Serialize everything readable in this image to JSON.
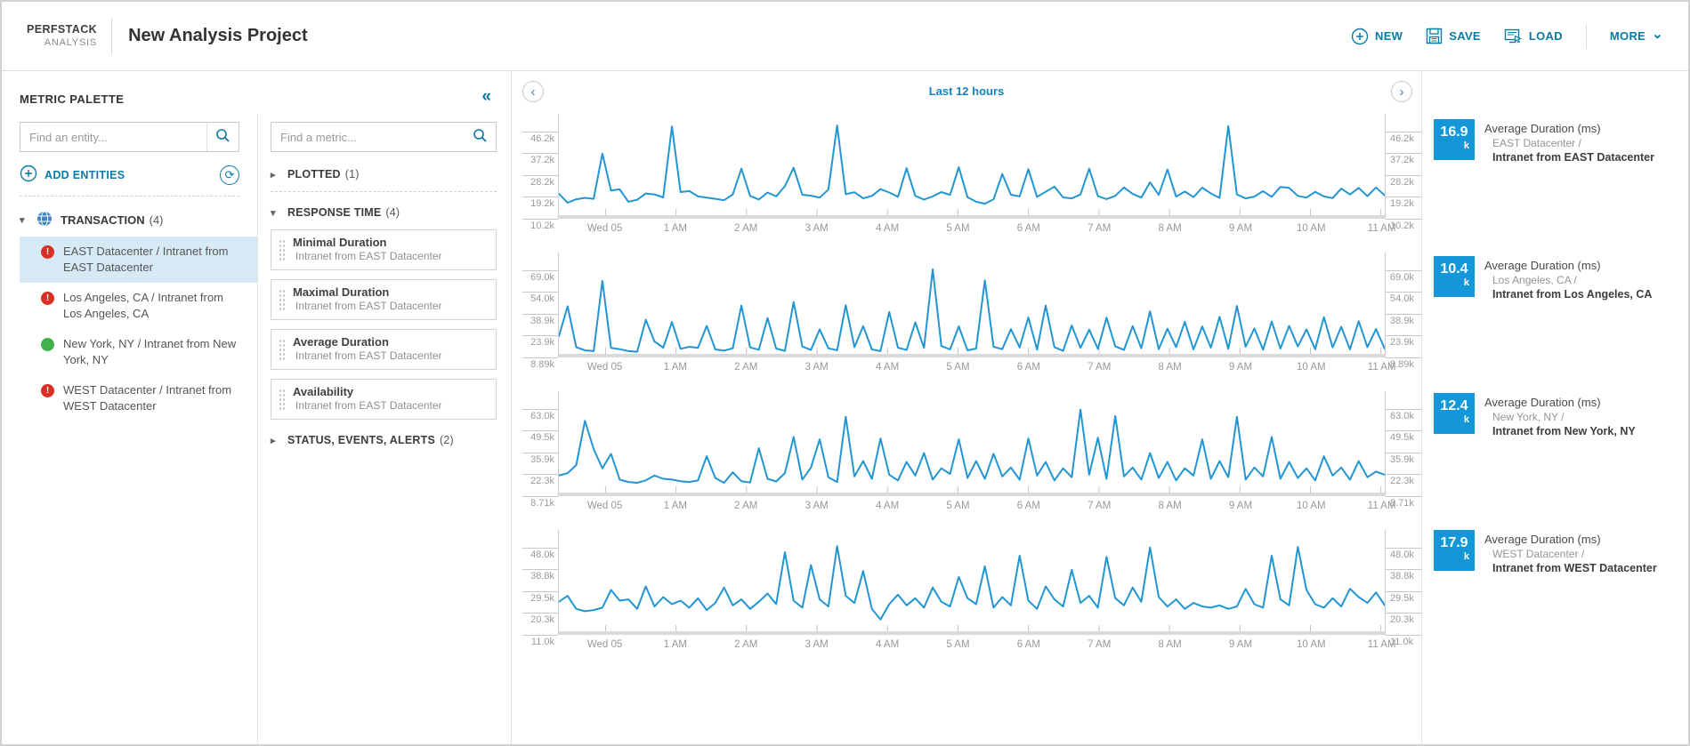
{
  "header": {
    "brand_line1": "PERFSTACK",
    "brand_line2": "ANALYSIS",
    "title": "New Analysis Project",
    "actions": {
      "new_label": "NEW",
      "save_label": "SAVE",
      "load_label": "LOAD",
      "more_label": "MORE"
    }
  },
  "icons": {
    "collapse": "«",
    "back": "‹",
    "forward": "›",
    "more_chevron": "⌄",
    "refresh": "⟳",
    "caret_right": "▸",
    "caret_down": "▾"
  },
  "colors": {
    "accent": "#0b7aa6",
    "line": "#2196d3",
    "legend_box": "#1497d8",
    "critical": "#d93025",
    "ok": "#43b14b",
    "selected_bg": "#d6eaf6",
    "time_label": "#1583c2"
  },
  "palette": {
    "title": "METRIC PALETTE",
    "entity_search_placeholder": "Find an entity...",
    "metric_search_placeholder": "Find a metric...",
    "add_entities_label": "ADD ENTITIES",
    "tree": {
      "group_label": "TRANSACTION",
      "group_count": "(4)",
      "items": [
        {
          "status": "critical",
          "label": "EAST Datacenter / Intranet from EAST Datacenter",
          "selected": true
        },
        {
          "status": "critical",
          "label": "Los Angeles, CA / Intranet from Los Angeles, CA",
          "selected": false
        },
        {
          "status": "up",
          "label": "New York, NY / Intranet from New York, NY",
          "selected": false
        },
        {
          "status": "critical",
          "label": "WEST Datacenter / Intranet from WEST Datacenter",
          "selected": false
        }
      ]
    },
    "sections": {
      "plotted_label": "PLOTTED",
      "plotted_count": "(1)",
      "response_label": "RESPONSE TIME",
      "response_count": "(4)",
      "status_label": "STATUS, EVENTS, ALERTS",
      "status_count": "(2)"
    },
    "metrics": [
      {
        "title": "Minimal Duration",
        "subtitle": "Intranet from EAST Datacenter"
      },
      {
        "title": "Maximal Duration",
        "subtitle": "Intranet from EAST Datacenter"
      },
      {
        "title": "Average Duration",
        "subtitle": "Intranet from EAST Datacenter"
      },
      {
        "title": "Availability",
        "subtitle": "Intranet from EAST Datacenter"
      }
    ]
  },
  "timebar": {
    "label": "Last 12 hours"
  },
  "chart_data": {
    "type": "line",
    "time_range": "Last 12 hours",
    "line_color": "#2196d3",
    "x_ticks": [
      "Wed 05",
      "1 AM",
      "2 AM",
      "3 AM",
      "4 AM",
      "5 AM",
      "6 AM",
      "7 AM",
      "8 AM",
      "9 AM",
      "10 AM",
      "11 AM"
    ],
    "unit": "ms (thousands)",
    "charts": [
      {
        "legend": {
          "value": "16.9",
          "unit": "k",
          "metric": "Average Duration (ms)",
          "entity": "EAST Datacenter /",
          "transaction": "Intranet from EAST Datacenter"
        },
        "ymin": 10.2,
        "ymax": 53.4,
        "y_ticks": [
          {
            "v": 10.2,
            "label": "10.2k"
          },
          {
            "v": 19.2,
            "label": "19.2k"
          },
          {
            "v": 28.2,
            "label": "28.2k"
          },
          {
            "v": 37.2,
            "label": "37.2k"
          },
          {
            "v": 46.2,
            "label": "46.2k"
          }
        ],
        "values": [
          20.5,
          16.8,
          18.2,
          18.8,
          18.4,
          37.0,
          21.8,
          22.3,
          17.2,
          18.0,
          20.6,
          20.2,
          19.0,
          48.2,
          21.2,
          21.6,
          19.4,
          18.9,
          18.4,
          17.8,
          20.2,
          30.8,
          19.6,
          18.1,
          21.0,
          19.4,
          23.6,
          31.2,
          20.1,
          19.7,
          18.9,
          22.2,
          48.6,
          20.3,
          21.1,
          18.6,
          19.6,
          22.4,
          21.0,
          19.2,
          31.0,
          19.6,
          18.1,
          19.4,
          21.2,
          20.0,
          31.4,
          19.1,
          17.2,
          16.4,
          18.2,
          28.6,
          20.1,
          19.4,
          30.6,
          19.2,
          21.3,
          23.4,
          19.0,
          18.6,
          20.2,
          30.8,
          19.5,
          18.3,
          19.6,
          23.1,
          20.4,
          18.9,
          25.2,
          20.0,
          30.5,
          19.3,
          21.4,
          19.1,
          23.0,
          20.6,
          18.8,
          48.4,
          20.2,
          18.6,
          19.3,
          21.6,
          19.2,
          23.3,
          22.9,
          19.6,
          18.9,
          21.3,
          19.4,
          18.7,
          22.6,
          20.2,
          22.9,
          19.5,
          23.1,
          19.8
        ]
      },
      {
        "legend": {
          "value": "10.4",
          "unit": "k",
          "metric": "Average Duration (ms)",
          "entity": "Los Angeles, CA /",
          "transaction": "Intranet from Los Angeles, CA"
        },
        "ymin": 8.89,
        "ymax": 81.0,
        "y_ticks": [
          {
            "v": 8.89,
            "label": "8.89k"
          },
          {
            "v": 23.9,
            "label": "23.9k"
          },
          {
            "v": 38.9,
            "label": "38.9k"
          },
          {
            "v": 54.0,
            "label": "54.0k"
          },
          {
            "v": 69.0,
            "label": "69.0k"
          }
        ],
        "values": [
          23.5,
          44.0,
          16.0,
          13.8,
          13.2,
          61.5,
          15.4,
          14.6,
          13.2,
          12.8,
          34.8,
          19.8,
          15.6,
          33.2,
          14.8,
          16.2,
          15.4,
          30.6,
          14.4,
          13.6,
          15.2,
          44.5,
          15.8,
          14.2,
          36.0,
          15.0,
          13.4,
          47.0,
          16.4,
          14.0,
          28.2,
          15.2,
          13.8,
          44.8,
          16.0,
          30.4,
          14.4,
          13.2,
          40.2,
          15.6,
          14.0,
          33.0,
          15.4,
          69.5,
          16.8,
          14.4,
          30.2,
          13.8,
          15.0,
          61.8,
          16.2,
          14.6,
          28.4,
          15.8,
          36.4,
          14.2,
          44.6,
          16.0,
          13.4,
          30.8,
          15.4,
          28.0,
          14.8,
          36.2,
          16.6,
          14.0,
          30.4,
          15.2,
          40.6,
          14.6,
          28.6,
          16.0,
          33.4,
          14.4,
          30.2,
          15.6,
          36.8,
          14.8,
          44.2,
          16.2,
          28.8,
          14.2,
          33.6,
          15.0,
          30.6,
          16.4,
          28.2,
          14.6,
          36.6,
          15.8,
          30.0,
          14.4,
          33.8,
          16.0,
          28.4,
          14.8
        ]
      },
      {
        "legend": {
          "value": "12.4",
          "unit": "k",
          "metric": "Average Duration (ms)",
          "entity": "New York, NY /",
          "transaction": "Intranet from New York, NY"
        },
        "ymin": 8.71,
        "ymax": 73.9,
        "y_ticks": [
          {
            "v": 8.71,
            "label": "8.71k"
          },
          {
            "v": 22.3,
            "label": "22.3k"
          },
          {
            "v": 35.9,
            "label": "35.9k"
          },
          {
            "v": 49.5,
            "label": "49.5k"
          },
          {
            "v": 63.0,
            "label": "63.0k"
          }
        ],
        "values": [
          21.5,
          23.0,
          28.0,
          55.5,
          38.0,
          26.0,
          35.0,
          19.0,
          17.5,
          17.0,
          18.5,
          21.5,
          19.5,
          19.0,
          18.0,
          17.5,
          18.5,
          33.5,
          20.0,
          17.0,
          23.5,
          18.0,
          17.2,
          38.5,
          19.5,
          17.8,
          23.0,
          45.5,
          19.0,
          26.5,
          44.0,
          20.5,
          17.5,
          58.0,
          21.0,
          30.5,
          19.5,
          44.5,
          22.0,
          18.5,
          30.0,
          21.5,
          35.5,
          19.0,
          26.0,
          22.5,
          44.0,
          20.0,
          30.5,
          19.5,
          35.0,
          21.0,
          26.5,
          19.0,
          44.5,
          21.5,
          30.0,
          18.5,
          26.0,
          20.5,
          62.5,
          22.0,
          45.0,
          19.5,
          58.5,
          21.0,
          26.5,
          19.0,
          35.5,
          20.0,
          30.0,
          18.5,
          26.0,
          21.5,
          44.0,
          19.5,
          30.5,
          20.5,
          58.0,
          19.0,
          26.5,
          21.0,
          45.5,
          19.5,
          30.0,
          20.0,
          26.0,
          18.5,
          33.5,
          21.5,
          26.5,
          19.0,
          30.5,
          20.5,
          24.0,
          22.0
        ]
      },
      {
        "legend": {
          "value": "17.9",
          "unit": "k",
          "metric": "Average Duration (ms)",
          "entity": "WEST Datacenter /",
          "transaction": "Intranet from WEST Datacenter"
        },
        "ymin": 11.0,
        "ymax": 55.4,
        "y_ticks": [
          {
            "v": 11.0,
            "label": "11.0k"
          },
          {
            "v": 20.3,
            "label": "20.3k"
          },
          {
            "v": 29.5,
            "label": "29.5k"
          },
          {
            "v": 38.8,
            "label": "38.8k"
          },
          {
            "v": 48.0,
            "label": "48.0k"
          }
        ],
        "values": [
          25.0,
          27.5,
          22.0,
          21.0,
          21.5,
          22.5,
          30.0,
          25.5,
          26.0,
          22.0,
          31.5,
          23.0,
          27.0,
          24.0,
          25.5,
          22.5,
          26.5,
          21.5,
          24.5,
          31.0,
          23.5,
          26.0,
          22.0,
          25.0,
          28.5,
          24.0,
          46.0,
          25.5,
          22.5,
          40.5,
          26.0,
          23.0,
          48.5,
          27.5,
          24.5,
          38.0,
          22.0,
          17.5,
          24.0,
          28.0,
          23.5,
          26.5,
          22.5,
          31.0,
          25.0,
          23.0,
          35.5,
          26.5,
          24.0,
          40.0,
          22.5,
          27.0,
          23.5,
          44.5,
          25.5,
          22.0,
          31.5,
          26.0,
          23.0,
          38.5,
          24.5,
          27.5,
          22.5,
          44.0,
          26.5,
          23.5,
          31.0,
          25.0,
          48.0,
          27.0,
          23.0,
          26.0,
          22.0,
          24.5,
          23.0,
          22.5,
          23.5,
          22.0,
          23.0,
          30.5,
          24.0,
          22.5,
          44.5,
          26.0,
          23.5,
          48.2,
          30.0,
          24.0,
          22.5,
          26.5,
          23.0,
          30.5,
          27.0,
          24.5,
          29.0,
          23.5
        ]
      }
    ]
  }
}
